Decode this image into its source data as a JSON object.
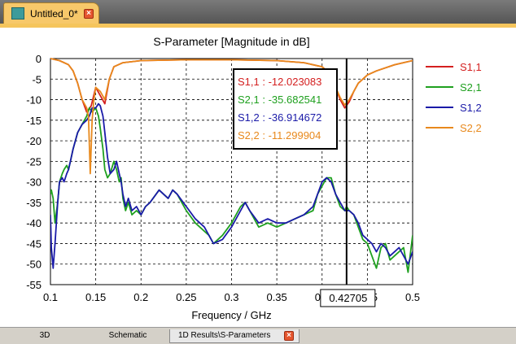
{
  "window": {
    "tab_title": "Untitled_0*",
    "icon": "s-parameter-app-icon"
  },
  "bottom_tabs": [
    {
      "label": "3D"
    },
    {
      "label": "Schematic"
    },
    {
      "label": "1D Results\\S-Parameters",
      "active": true
    }
  ],
  "chart_data": {
    "type": "line",
    "title": "S-Parameter [Magnitude in dB]",
    "xlabel": "Frequency / GHz",
    "ylabel": "",
    "xlim": [
      0.1,
      0.5
    ],
    "ylim": [
      -55,
      0
    ],
    "xticks": [
      0.1,
      0.15,
      0.2,
      0.25,
      0.3,
      0.35,
      0.4,
      0.45,
      0.5
    ],
    "yticks": [
      0,
      -5,
      -10,
      -15,
      -20,
      -25,
      -30,
      -35,
      -40,
      -45,
      -50,
      -55
    ],
    "grid": true,
    "legend": "right",
    "marker": {
      "x": 0.42705,
      "label": "0.42705",
      "readout": [
        {
          "label": "S1,1 : -12.023083",
          "color": "#d42020"
        },
        {
          "label": "S2,1 : -35.682541",
          "color": "#1fa01f"
        },
        {
          "label": "S1,2 : -36.914672",
          "color": "#1a1aa8"
        },
        {
          "label": "S2,2 : -11.299904",
          "color": "#e8891c"
        }
      ]
    },
    "series": [
      {
        "name": "S1,1",
        "color": "#d42020",
        "x": [
          0.1,
          0.11,
          0.12,
          0.125,
          0.13,
          0.135,
          0.14,
          0.145,
          0.15,
          0.155,
          0.16,
          0.165,
          0.17,
          0.18,
          0.2,
          0.25,
          0.3,
          0.35,
          0.38,
          0.4,
          0.41,
          0.415,
          0.42,
          0.425,
          0.43,
          0.435,
          0.44,
          0.45,
          0.46,
          0.48,
          0.5
        ],
        "y": [
          0,
          -0.5,
          -1.5,
          -3,
          -6,
          -10,
          -13,
          -11.5,
          -7,
          -9,
          -11,
          -5,
          -2,
          -1,
          -0.5,
          -0.3,
          -0.3,
          -0.5,
          -1,
          -2,
          -4,
          -7,
          -10,
          -12,
          -10.5,
          -8,
          -6,
          -4,
          -3,
          -1.5,
          -0.5
        ]
      },
      {
        "name": "S2,1",
        "color": "#1fa01f",
        "x": [
          0.1,
          0.101,
          0.103,
          0.105,
          0.108,
          0.11,
          0.113,
          0.115,
          0.118,
          0.12,
          0.122,
          0.125,
          0.13,
          0.135,
          0.14,
          0.143,
          0.146,
          0.15,
          0.153,
          0.155,
          0.158,
          0.16,
          0.163,
          0.166,
          0.17,
          0.173,
          0.176,
          0.178,
          0.18,
          0.183,
          0.186,
          0.19,
          0.195,
          0.2,
          0.205,
          0.21,
          0.22,
          0.23,
          0.235,
          0.24,
          0.25,
          0.26,
          0.27,
          0.275,
          0.28,
          0.29,
          0.3,
          0.31,
          0.315,
          0.32,
          0.33,
          0.34,
          0.35,
          0.36,
          0.37,
          0.38,
          0.39,
          0.395,
          0.4,
          0.405,
          0.41,
          0.415,
          0.42,
          0.425,
          0.427,
          0.43,
          0.435,
          0.44,
          0.445,
          0.45,
          0.455,
          0.46,
          0.465,
          0.47,
          0.475,
          0.48,
          0.485,
          0.49,
          0.495,
          0.5
        ],
        "y": [
          -33,
          -32,
          -34,
          -40,
          -35,
          -30,
          -28,
          -27,
          -26,
          -27,
          -25,
          -22,
          -18,
          -16,
          -14,
          -12,
          -13,
          -12,
          -14,
          -17,
          -22,
          -27,
          -29,
          -28,
          -25,
          -27,
          -30,
          -29,
          -34,
          -37,
          -35,
          -38,
          -37,
          -38,
          -36,
          -35,
          -32,
          -34,
          -32,
          -33,
          -37,
          -40,
          -42,
          -43,
          -45,
          -43,
          -40,
          -36,
          -35,
          -37,
          -41,
          -40,
          -41,
          -40,
          -39,
          -38,
          -37,
          -33,
          -31,
          -29,
          -29,
          -33,
          -36,
          -37,
          -36,
          -37,
          -38,
          -41,
          -44,
          -45,
          -48,
          -51,
          -46,
          -45,
          -49,
          -48,
          -47,
          -46,
          -52,
          -43
        ]
      },
      {
        "name": "S1,2",
        "color": "#1a1aa8",
        "x": [
          0.1,
          0.101,
          0.103,
          0.105,
          0.108,
          0.11,
          0.113,
          0.115,
          0.118,
          0.12,
          0.122,
          0.125,
          0.13,
          0.135,
          0.14,
          0.143,
          0.146,
          0.15,
          0.153,
          0.155,
          0.158,
          0.16,
          0.163,
          0.166,
          0.17,
          0.173,
          0.176,
          0.178,
          0.18,
          0.183,
          0.186,
          0.19,
          0.195,
          0.2,
          0.205,
          0.21,
          0.22,
          0.23,
          0.235,
          0.24,
          0.25,
          0.26,
          0.27,
          0.275,
          0.28,
          0.29,
          0.3,
          0.31,
          0.315,
          0.32,
          0.33,
          0.34,
          0.35,
          0.36,
          0.37,
          0.38,
          0.39,
          0.395,
          0.4,
          0.405,
          0.41,
          0.415,
          0.42,
          0.425,
          0.427,
          0.43,
          0.435,
          0.44,
          0.445,
          0.45,
          0.455,
          0.46,
          0.465,
          0.47,
          0.475,
          0.48,
          0.485,
          0.49,
          0.495,
          0.5
        ],
        "y": [
          -38,
          -46,
          -51,
          -45,
          -35,
          -30,
          -29,
          -30,
          -28,
          -27,
          -25,
          -22,
          -18,
          -16,
          -15,
          -14,
          -12,
          -12,
          -11,
          -11.5,
          -14,
          -18,
          -24,
          -28,
          -27,
          -25,
          -28,
          -30,
          -33,
          -36,
          -34,
          -37,
          -36,
          -38,
          -36,
          -35,
          -32,
          -34,
          -32,
          -33,
          -36,
          -39,
          -41,
          -43,
          -45,
          -44,
          -41,
          -37,
          -35,
          -37,
          -40,
          -39,
          -40,
          -40,
          -39,
          -38,
          -36,
          -33,
          -30,
          -29,
          -30,
          -33,
          -35,
          -37,
          -37,
          -37,
          -38,
          -40,
          -43,
          -44,
          -45,
          -47,
          -45,
          -46,
          -48,
          -47,
          -46,
          -48,
          -50,
          -47
        ]
      },
      {
        "name": "S2,2",
        "color": "#e8891c",
        "x": [
          0.1,
          0.11,
          0.12,
          0.125,
          0.13,
          0.135,
          0.14,
          0.142,
          0.144,
          0.146,
          0.148,
          0.15,
          0.155,
          0.16,
          0.165,
          0.17,
          0.18,
          0.2,
          0.25,
          0.3,
          0.35,
          0.38,
          0.4,
          0.41,
          0.415,
          0.42,
          0.425,
          0.43,
          0.435,
          0.44,
          0.45,
          0.46,
          0.48,
          0.5
        ],
        "y": [
          0,
          -0.5,
          -1.5,
          -3,
          -6,
          -10,
          -12,
          -14,
          -28,
          -15,
          -10,
          -7,
          -8,
          -10,
          -5,
          -2,
          -1,
          -0.5,
          -0.3,
          -0.3,
          -0.5,
          -1,
          -2,
          -4,
          -7,
          -9.5,
          -11.3,
          -10,
          -8,
          -6,
          -4,
          -3,
          -1.5,
          -0.5
        ]
      }
    ]
  }
}
